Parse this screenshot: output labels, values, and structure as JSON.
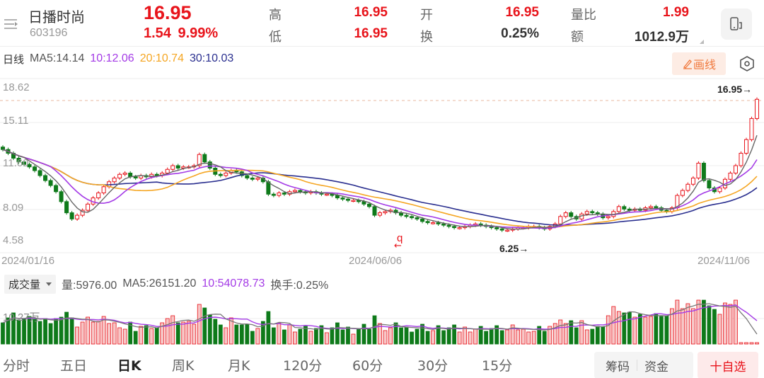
{
  "header": {
    "stock_name": "日播时尚",
    "stock_code": "603196",
    "price": "16.95",
    "change": "1.54",
    "change_pct": "9.99%",
    "quotes": [
      {
        "label": "高",
        "value": "16.95",
        "color": "red"
      },
      {
        "label": "低",
        "value": "16.95",
        "color": "red"
      },
      {
        "label": "开",
        "value": "16.95",
        "color": "red"
      },
      {
        "label": "换",
        "value": "0.25%",
        "color": "dark"
      },
      {
        "label": "量比",
        "value": "1.99",
        "color": "red"
      },
      {
        "label": "额",
        "value": "1012.9万",
        "color": "dark"
      }
    ]
  },
  "ma_bar": {
    "title": "日线",
    "ma5": "MA5:14.14",
    "ma10": "10:12.06",
    "ma20": "20:10.74",
    "ma30": "30:10.03",
    "draw_button": "画线"
  },
  "colors": {
    "up": "#e8141b",
    "down": "#0e7a1a",
    "ma5": "#666666",
    "ma10": "#a43be6",
    "ma20": "#f5a623",
    "ma30": "#2a2f8f",
    "accent_orange": "#f0783c"
  },
  "chart": {
    "y_ticks": [
      "18.62",
      "15.11",
      "11.60",
      "8.09",
      "4.58"
    ],
    "dates": [
      "2024/01/16",
      "2024/06/06",
      "2024/11/06"
    ],
    "max_marker": "16.95→",
    "min_marker": "6.25→",
    "marker_q": "q",
    "marker_arrow": "←"
  },
  "volume": {
    "selector": "成交量",
    "vol": "量:5976.00",
    "ma5": "MA5:26151.20",
    "ma10": "10:54078.73",
    "turnover": "换手:0.25%",
    "y_tick": "10.27万"
  },
  "tabs": [
    "分时",
    "五日",
    "日K",
    "周K",
    "月K",
    "120分",
    "60分",
    "30分",
    "15分"
  ],
  "active_tab": "日K",
  "bottom_buttons": {
    "chips": "筹码",
    "funds": "资金",
    "add_watch": "十自选"
  },
  "chart_data": {
    "type": "candlestick",
    "title": "日播时尚 603196 日K",
    "xlabel": "",
    "ylabel": "",
    "ylim": [
      4.58,
      18.62
    ],
    "y_ticks": [
      18.62,
      15.11,
      11.6,
      8.09,
      4.58
    ],
    "x_tick_labels": [
      "2024/01/16",
      "2024/06/06",
      "2024/11/06"
    ],
    "annotations": [
      {
        "text": "16.95→",
        "position": "max"
      },
      {
        "text": "6.25→",
        "position": "min"
      }
    ],
    "series": [
      {
        "name": "MA5",
        "last": 14.14
      },
      {
        "name": "MA10",
        "last": 12.06
      },
      {
        "name": "MA20",
        "last": 10.74
      },
      {
        "name": "MA30",
        "last": 10.03
      }
    ],
    "close_approx": [
      12.9,
      12.6,
      12.2,
      11.9,
      11.7,
      11.5,
      11.2,
      10.8,
      10.4,
      10.0,
      9.5,
      8.7,
      7.8,
      7.3,
      7.6,
      8.0,
      8.5,
      9.0,
      9.4,
      9.9,
      10.3,
      10.6,
      10.9,
      11.0,
      10.7,
      10.6,
      10.8,
      10.7,
      10.9,
      10.8,
      11.0,
      11.3,
      11.6,
      11.4,
      11.5,
      11.5,
      11.6,
      12.5,
      11.9,
      11.4,
      10.9,
      10.8,
      11.0,
      11.2,
      11.1,
      10.8,
      10.6,
      10.5,
      10.6,
      10.3,
      9.3,
      9.2,
      9.4,
      9.3,
      9.5,
      9.6,
      9.5,
      9.4,
      9.5,
      9.4,
      9.3,
      9.3,
      9.2,
      9.0,
      8.9,
      8.8,
      8.8,
      8.7,
      8.5,
      8.3,
      7.6,
      7.8,
      7.9,
      8.0,
      7.8,
      7.6,
      7.5,
      7.4,
      7.3,
      7.1,
      7.0,
      7.0,
      6.9,
      6.8,
      6.7,
      6.6,
      6.6,
      6.7,
      6.8,
      6.9,
      6.8,
      6.7,
      6.6,
      6.5,
      6.4,
      6.4,
      6.5,
      6.6,
      6.6,
      6.7,
      6.7,
      6.6,
      6.5,
      6.7,
      6.9,
      7.5,
      7.8,
      7.5,
      7.3,
      7.7,
      7.9,
      7.8,
      7.7,
      7.4,
      7.5,
      7.9,
      8.3,
      8.1,
      8.0,
      8.1,
      8.0,
      8.2,
      8.3,
      8.2,
      8.0,
      7.9,
      8.2,
      9.2,
      9.6,
      10.1,
      10.6,
      11.8,
      10.4,
      9.8,
      9.5,
      9.8,
      10.5,
      11.0,
      11.6,
      12.6,
      13.7,
      15.4,
      16.95
    ],
    "volume": {
      "y_tick": "10.27万",
      "last": 5976.0,
      "ma5": 26151.2,
      "ma10": 54078.73
    }
  }
}
